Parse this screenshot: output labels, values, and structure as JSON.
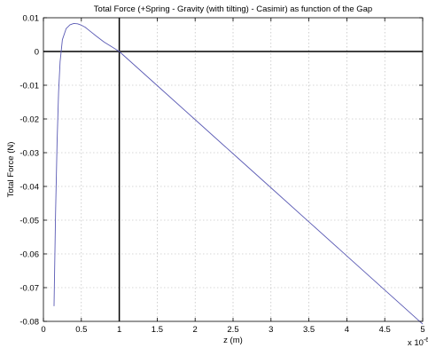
{
  "chart_data": {
    "type": "line",
    "title": "Total Force (+Spring - Gravity (with tilting) - Casimir) as function of the Gap",
    "xlabel": "z (m)",
    "ylabel": "Total Force (N)",
    "x_multiplier": "x 10",
    "x_multiplier_exponent": "-6",
    "xlim": [
      0,
      5
    ],
    "ylim": [
      -0.08,
      0.01
    ],
    "x_ticks": [
      "0",
      "0.5",
      "1",
      "1.5",
      "2",
      "2.5",
      "3",
      "3.5",
      "4",
      "4.5",
      "5"
    ],
    "y_ticks": [
      "0.01",
      "0",
      "-0.01",
      "-0.02",
      "-0.03",
      "-0.04",
      "-0.05",
      "-0.06",
      "-0.07",
      "-0.08"
    ],
    "grid": true,
    "reference_lines": {
      "y": 0,
      "x": 1
    },
    "series": [
      {
        "color": "#5a5ab4",
        "x": [
          0.14,
          0.16,
          0.18,
          0.2,
          0.22,
          0.25,
          0.3,
          0.35,
          0.4,
          0.45,
          0.5,
          0.55,
          0.6,
          0.7,
          0.8,
          0.9,
          1.0,
          1.5,
          2.0,
          2.5,
          3.0,
          3.5,
          4.0,
          4.5,
          5.0
        ],
        "y": [
          -0.0755,
          -0.048,
          -0.027,
          -0.012,
          -0.003,
          0.0035,
          0.0068,
          0.0079,
          0.0083,
          0.0082,
          0.0078,
          0.0072,
          0.0063,
          0.0045,
          0.0028,
          0.0014,
          0.0,
          -0.0101,
          -0.0202,
          -0.0303,
          -0.0404,
          -0.0505,
          -0.0606,
          -0.0707,
          -0.0808
        ]
      }
    ]
  }
}
